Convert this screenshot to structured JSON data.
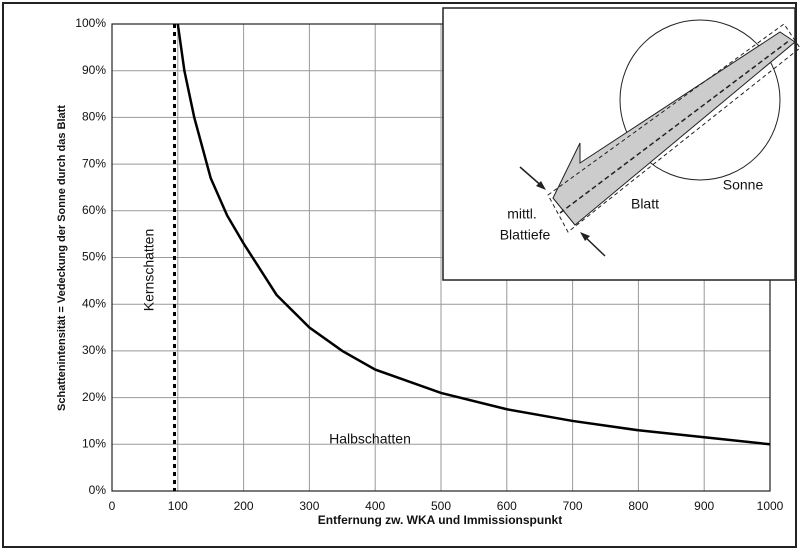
{
  "chart_data": {
    "type": "line",
    "y_label": "Schattenintensität  = Vedeckung der Sonne durch das Blatt",
    "x_label": "Entfernung zw. WKA und Immissionspunkt",
    "x": [
      100,
      110,
      125,
      150,
      175,
      200,
      250,
      300,
      350,
      400,
      500,
      600,
      700,
      800,
      900,
      1000
    ],
    "series": [
      {
        "color": "#000000",
        "values": [
          100,
          90,
          80,
          67,
          59,
          53,
          42,
          35,
          30,
          26,
          21,
          17.5,
          15,
          13,
          11.5,
          10
        ]
      }
    ],
    "xlim": [
      0,
      1000
    ],
    "xticks": [
      0,
      100,
      200,
      300,
      400,
      500,
      600,
      700,
      800,
      900,
      1000
    ],
    "ylim": [
      0,
      100
    ],
    "yticks": [
      {
        "value": 0,
        "label": "0%"
      },
      {
        "value": 10,
        "label": "10%"
      },
      {
        "value": 20,
        "label": "20%"
      },
      {
        "value": 30,
        "label": "30%"
      },
      {
        "value": 40,
        "label": "40%"
      },
      {
        "value": 50,
        "label": "50%"
      },
      {
        "value": 60,
        "label": "60%"
      },
      {
        "value": 70,
        "label": "70%"
      },
      {
        "value": 80,
        "label": "80%"
      },
      {
        "value": 90,
        "label": "90%"
      },
      {
        "value": 100,
        "label": "100%"
      }
    ],
    "grid": true,
    "core_shadow_x": 95,
    "annotations": {
      "core": "Kernschatten",
      "half": "Halbschatten"
    },
    "inset": {
      "sun": "Sonne",
      "blade": "Blatt",
      "depth_1": "mittl.",
      "depth_2": "Blattiefe"
    }
  }
}
